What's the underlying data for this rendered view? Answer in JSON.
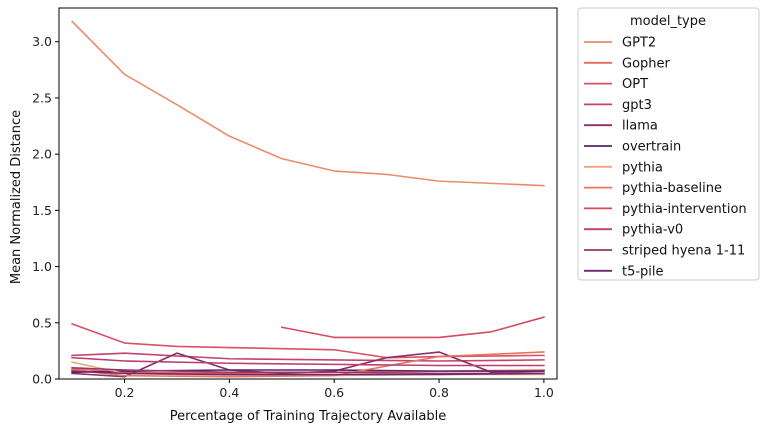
{
  "chart_data": {
    "type": "line",
    "title": "",
    "xlabel": "Percentage of Training Trajectory Available",
    "ylabel": "Mean Normalized Distance",
    "xlim": [
      0.075,
      1.025
    ],
    "ylim": [
      0,
      3.3
    ],
    "xticks": [
      0.2,
      0.4,
      0.6,
      0.8,
      1.0
    ],
    "xtick_labels": [
      "0.2",
      "0.4",
      "0.6",
      "0.8",
      "1.0"
    ],
    "yticks": [
      0.0,
      0.5,
      1.0,
      1.5,
      2.0,
      2.5,
      3.0
    ],
    "ytick_labels": [
      "0.0",
      "0.5",
      "1.0",
      "1.5",
      "2.0",
      "2.5",
      "3.0"
    ],
    "grid": false,
    "legend": {
      "title": "model_type",
      "placement": "outside-right"
    },
    "series": [
      {
        "name": "GPT2",
        "color": "#eb8c69",
        "x": [
          0.1,
          0.2,
          0.3,
          0.4,
          0.5,
          0.6,
          0.7,
          0.8,
          0.9,
          1.0
        ],
        "y": [
          3.18,
          2.71,
          2.44,
          2.16,
          1.96,
          1.85,
          1.82,
          1.76,
          1.74,
          1.72
        ]
      },
      {
        "name": "Gopher",
        "color": "#e56a5d",
        "x": [
          0.1,
          0.2,
          0.4,
          0.6,
          0.8,
          1.0
        ],
        "y": [
          0.09,
          0.06,
          0.05,
          0.06,
          0.07,
          0.08
        ]
      },
      {
        "name": "OPT",
        "color": "#d85266",
        "x": [
          0.1,
          0.2,
          0.3,
          0.4,
          0.6,
          0.7,
          0.8,
          1.0
        ],
        "y": [
          0.49,
          0.32,
          0.29,
          0.28,
          0.26,
          0.19,
          0.2,
          0.21
        ]
      },
      {
        "name": "gpt3",
        "color": "#c4436c",
        "x": [
          0.1,
          0.2,
          0.4,
          0.6,
          0.8,
          1.0
        ],
        "y": [
          0.21,
          0.23,
          0.18,
          0.17,
          0.16,
          0.17
        ]
      },
      {
        "name": "llama",
        "color": "#8a2d69",
        "x": [
          0.1,
          0.2,
          0.3,
          0.4,
          0.5,
          0.6,
          0.7,
          0.8,
          0.9,
          1.0
        ],
        "y": [
          0.05,
          0.02,
          0.23,
          0.08,
          0.05,
          0.07,
          0.19,
          0.24,
          0.06,
          0.07
        ]
      },
      {
        "name": "overtrain",
        "color": "#5a2267",
        "x": [
          0.1,
          0.2,
          0.4,
          0.6,
          0.8,
          1.0
        ],
        "y": [
          0.06,
          0.07,
          0.08,
          0.08,
          0.07,
          0.07
        ]
      },
      {
        "name": "pythia",
        "color": "#f0a47b",
        "x": [
          0.1,
          0.2,
          0.4,
          0.6,
          0.8,
          1.0
        ],
        "y": [
          0.15,
          0.05,
          0.03,
          0.03,
          0.04,
          0.04
        ]
      },
      {
        "name": "pythia-baseline",
        "color": "#e8735f",
        "x": [
          0.1,
          0.2,
          0.4,
          0.6,
          0.8,
          1.0
        ],
        "y": [
          0.08,
          0.03,
          0.02,
          0.03,
          0.2,
          0.24
        ]
      },
      {
        "name": "pythia-intervention",
        "color": "#d64a5f",
        "x": [
          0.5,
          0.6,
          0.7,
          0.8,
          0.9,
          1.0
        ],
        "y": [
          0.46,
          0.37,
          0.37,
          0.37,
          0.42,
          0.55
        ]
      },
      {
        "name": "pythia-v0",
        "color": "#b93f6e",
        "x": [
          0.1,
          0.2,
          0.4,
          0.6,
          0.8,
          1.0
        ],
        "y": [
          0.19,
          0.16,
          0.14,
          0.13,
          0.12,
          0.12
        ]
      },
      {
        "name": "striped hyena 1-11",
        "color": "#9a326b",
        "x": [
          0.1,
          0.2,
          0.4,
          0.6,
          0.8,
          1.0
        ],
        "y": [
          0.1,
          0.08,
          0.06,
          0.06,
          0.05,
          0.05
        ]
      },
      {
        "name": "t5-pile",
        "color": "#6b2a6b",
        "x": [
          0.1,
          0.2,
          0.4,
          0.6,
          0.8,
          1.0
        ],
        "y": [
          0.07,
          0.05,
          0.04,
          0.04,
          0.04,
          0.05
        ]
      }
    ]
  }
}
